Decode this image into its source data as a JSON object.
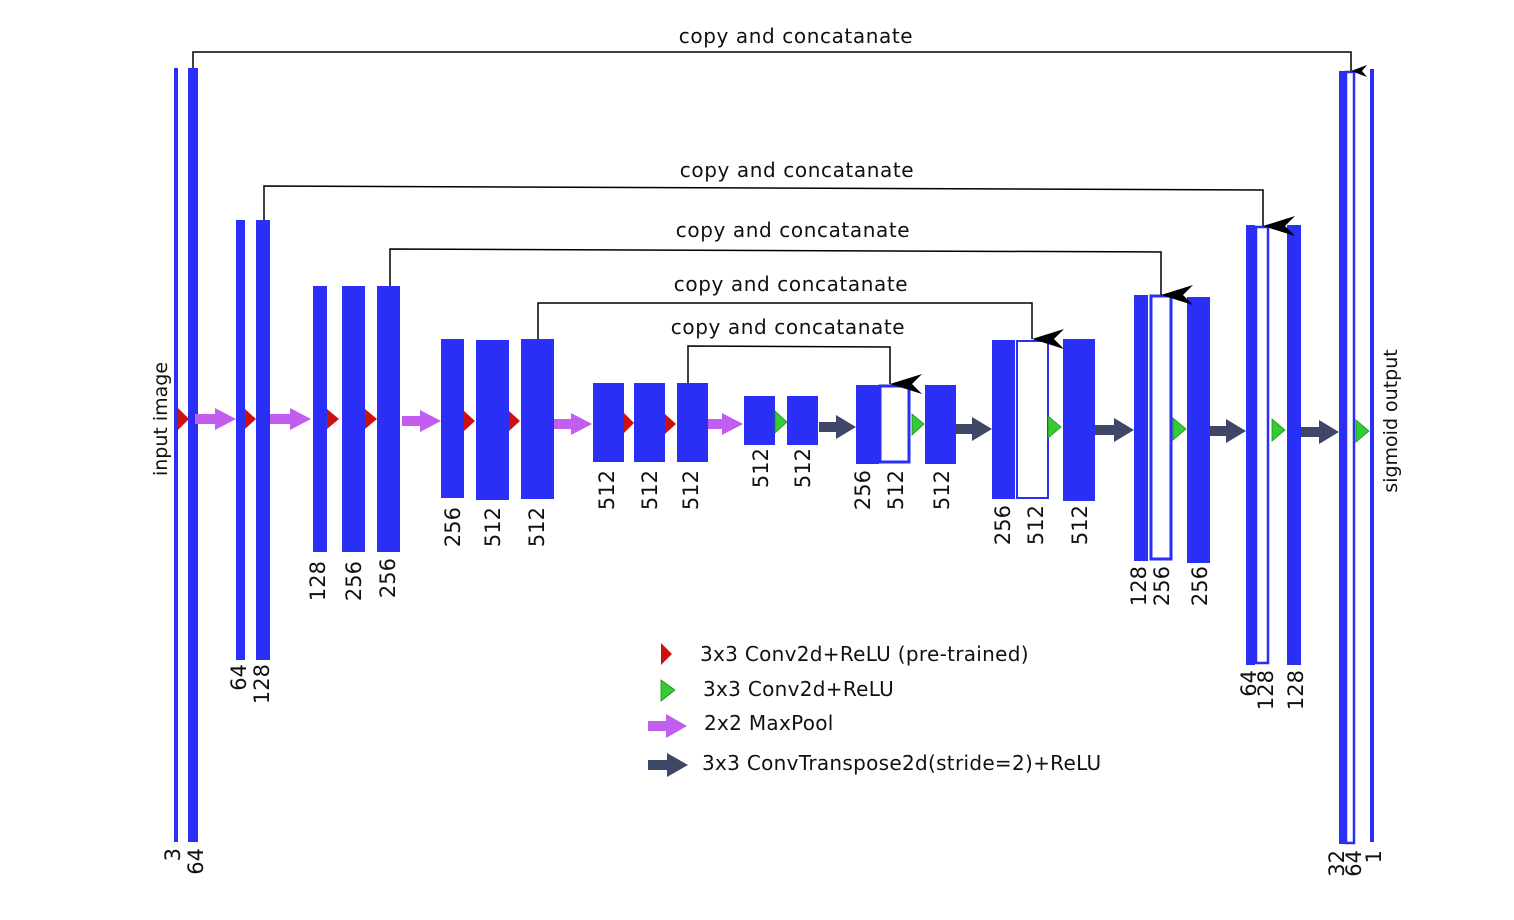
{
  "colors": {
    "feature_map": "#2a2ff5",
    "concat_outline": "#2a2ff5",
    "conv_pretrained": "#cc1111",
    "conv": "#33cc33",
    "maxpool": "#c15ef0",
    "conv_transpose": "#3f4766",
    "skip_line": "#000000"
  },
  "side_labels": {
    "input": "input image",
    "output": "sigmoid output"
  },
  "skip_label": "copy and concatanate",
  "channel_labels": {
    "enc1": [
      "3",
      "64"
    ],
    "enc2": [
      "64",
      "128"
    ],
    "enc3": [
      "128",
      "256",
      "256"
    ],
    "enc4": [
      "256",
      "512",
      "512"
    ],
    "enc5": [
      "512",
      "512",
      "512"
    ],
    "center": [
      "512",
      "512"
    ],
    "dec5": [
      "256",
      "512",
      "512"
    ],
    "dec4": [
      "256",
      "512",
      "512"
    ],
    "dec3": [
      "128",
      "256",
      "256"
    ],
    "dec2": [
      "64",
      "128",
      "128"
    ],
    "dec1": [
      "32",
      "64",
      "1"
    ]
  },
  "legend": [
    {
      "icon": "red-triangle-icon",
      "label": "3x3 Conv2d+ReLU (pre-trained)"
    },
    {
      "icon": "green-triangle-icon",
      "label": "3x3 Conv2d+ReLU"
    },
    {
      "icon": "purple-arrow-icon",
      "label": "2x2 MaxPool"
    },
    {
      "icon": "dark-arrow-icon",
      "label": "3x3 ConvTranspose2d(stride=2)+ReLU"
    }
  ]
}
